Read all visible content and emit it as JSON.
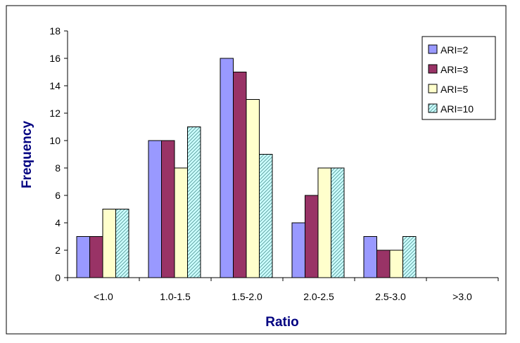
{
  "chart_data": {
    "type": "bar",
    "categories": [
      "<1.0",
      "1.0-1.5",
      "1.5-2.0",
      "2.0-2.5",
      "2.5-3.0",
      ">3.0"
    ],
    "series": [
      {
        "name": "ARI=2",
        "values": [
          3,
          10,
          16,
          4,
          3,
          0
        ],
        "color": "#9999ff",
        "pattern": "solid"
      },
      {
        "name": "ARI=3",
        "values": [
          3,
          10,
          15,
          6,
          2,
          0
        ],
        "color": "#993366",
        "pattern": "solid"
      },
      {
        "name": "ARI=5",
        "values": [
          5,
          8,
          13,
          8,
          2,
          0
        ],
        "color": "#ffffcc",
        "pattern": "solid"
      },
      {
        "name": "ARI=10",
        "values": [
          5,
          11,
          9,
          8,
          3,
          0
        ],
        "color": "#ccffff",
        "pattern": "diagonal-hatch"
      }
    ],
    "title": "",
    "xlabel": "Ratio",
    "ylabel": "Frequency",
    "ylim": [
      0,
      18
    ],
    "yticks": [
      "0",
      "2",
      "4",
      "6",
      "8",
      "10",
      "12",
      "14",
      "16",
      "18"
    ],
    "grid": false,
    "legend_position": "top-right"
  }
}
